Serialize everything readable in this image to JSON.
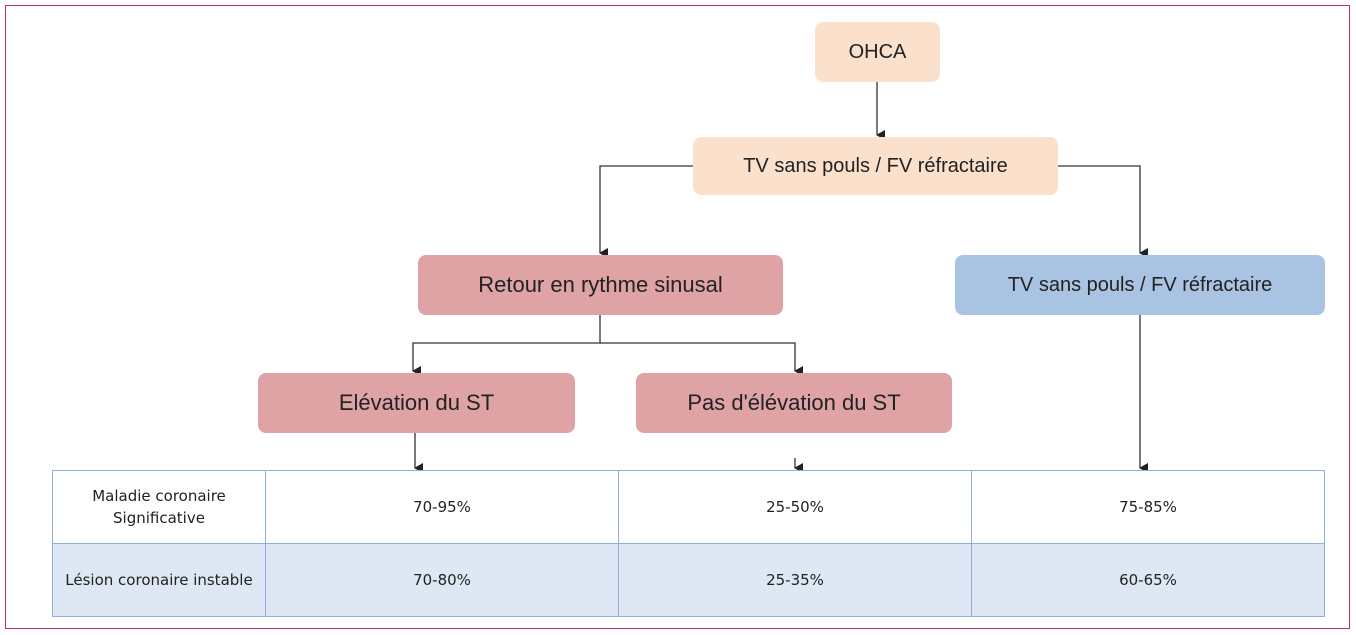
{
  "nodes": [
    {
      "label": "OHCA"
    },
    {
      "label": "TV sans pouls / FV réfractaire"
    },
    {
      "label": "Retour en rythme sinusal"
    },
    {
      "label": "TV sans pouls / FV réfractaire"
    },
    {
      "label": "Elévation du ST"
    },
    {
      "label": "Pas d'élévation du ST"
    }
  ],
  "table": {
    "rows": [
      [
        "Maladie coronaire Significative",
        "70-95%",
        "25-50%",
        "75-85%"
      ],
      [
        "Lésion coronaire instable",
        "70-80%",
        "25-35%",
        "60-65%"
      ]
    ]
  }
}
